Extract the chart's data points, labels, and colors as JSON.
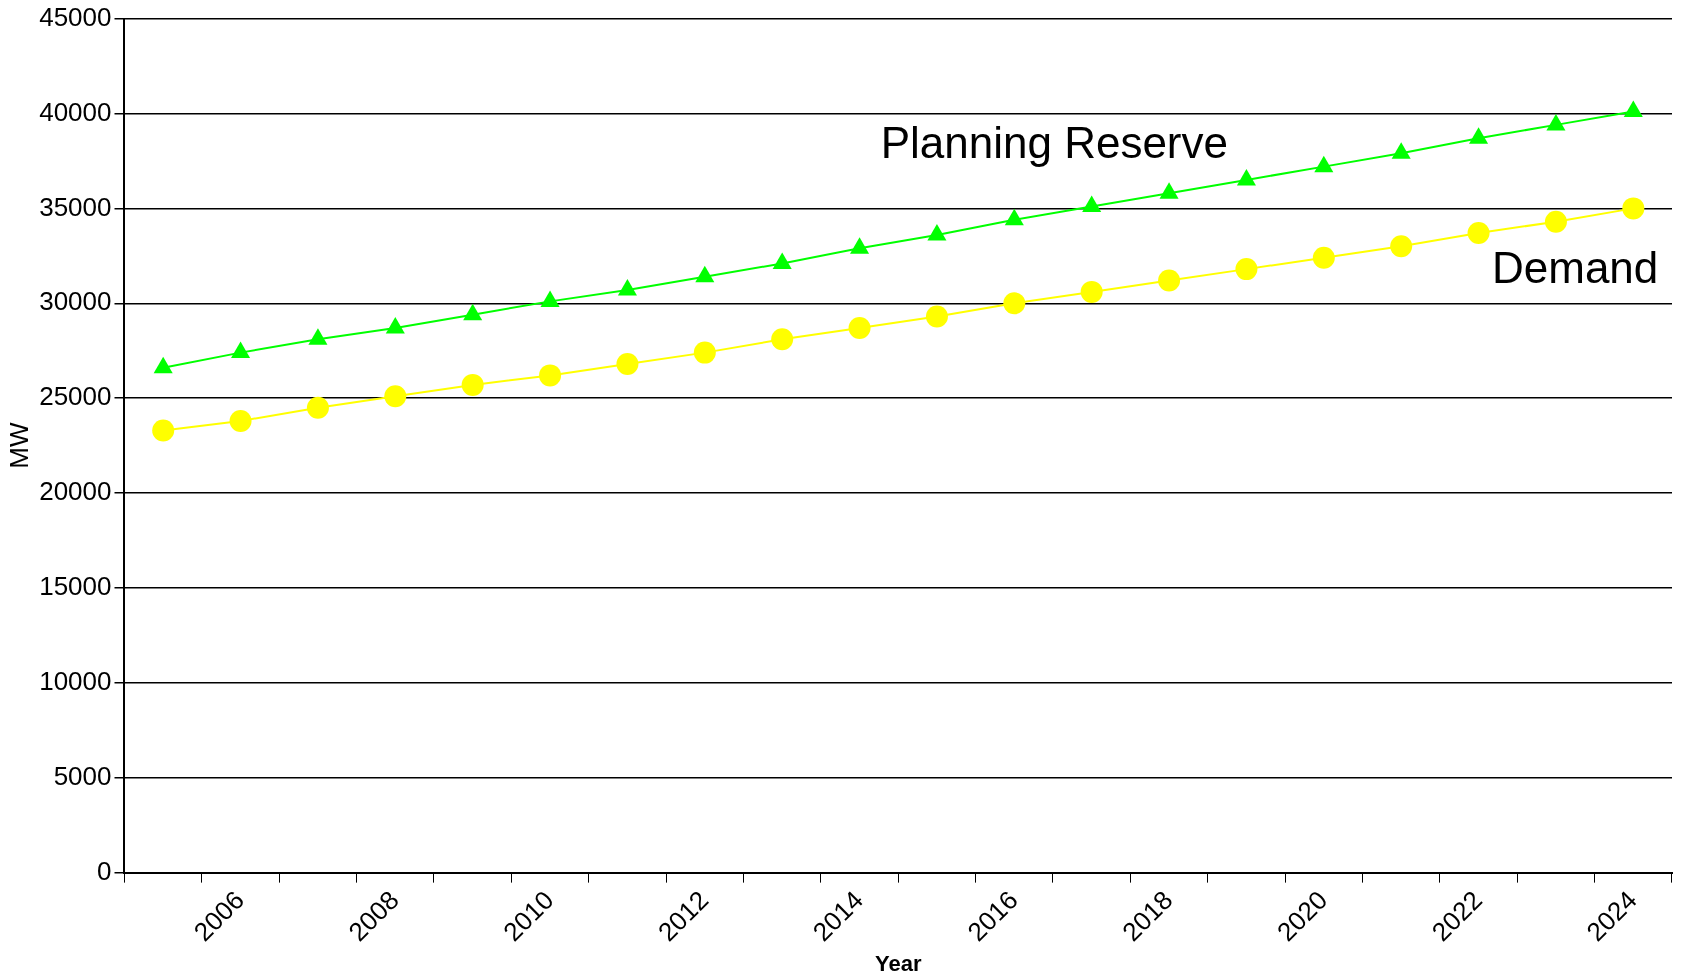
{
  "chart_data": {
    "type": "line",
    "xlabel": "Year",
    "ylabel": "MW",
    "categories": [
      null,
      "2006",
      null,
      "2008",
      null,
      "2010",
      null,
      "2012",
      null,
      "2014",
      null,
      "2016",
      null,
      "2018",
      null,
      "2020",
      null,
      "2022",
      null,
      "2024"
    ],
    "series": [
      {
        "name": "Planning Reserve",
        "color": "#00ff00",
        "marker": "triangle",
        "values": [
          26600,
          27400,
          28100,
          28700,
          29400,
          30100,
          30700,
          31400,
          32100,
          32900,
          33600,
          34400,
          35100,
          35800,
          36500,
          37200,
          37900,
          38700,
          39400,
          40100
        ]
      },
      {
        "name": "Demand",
        "color": "#ffff00",
        "marker": "circle",
        "values": [
          23300,
          23800,
          24500,
          25100,
          25700,
          26200,
          26800,
          27400,
          28100,
          28700,
          29300,
          30000,
          30600,
          31200,
          31800,
          32400,
          33000,
          33700,
          34300,
          35000
        ]
      }
    ],
    "ylim": [
      0,
      45000
    ],
    "yticks": [
      0,
      5000,
      10000,
      15000,
      20000,
      25000,
      30000,
      35000,
      40000,
      45000
    ],
    "grid": "y",
    "legend": false
  }
}
